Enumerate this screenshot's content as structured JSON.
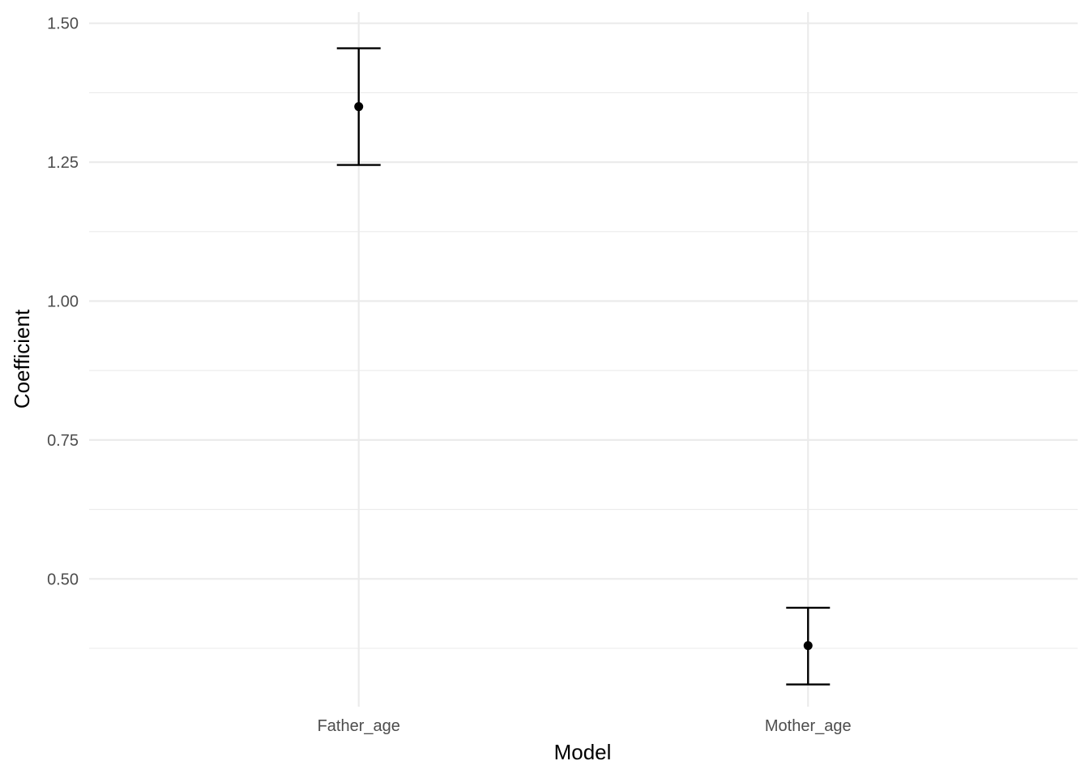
{
  "chart_data": {
    "type": "errorbar",
    "title": "",
    "xlabel": "Model",
    "ylabel": "Coefficient",
    "categories": [
      "Father_age",
      "Mother_age"
    ],
    "estimates": [
      1.35,
      0.38
    ],
    "lower": [
      1.245,
      0.31
    ],
    "upper": [
      1.455,
      0.448
    ],
    "ylim": [
      0.27,
      1.52
    ],
    "yticks": [
      0.5,
      0.75,
      1.0,
      1.25,
      1.5
    ],
    "ytick_labels": [
      "0.50",
      "0.75",
      "1.00",
      "1.25",
      "1.50"
    ],
    "minor_yticks": [
      0.375,
      0.625,
      0.875,
      1.125,
      1.375
    ],
    "grid": true,
    "legend": "none",
    "colors": {
      "mark": "#000000",
      "grid": "#ebebeb",
      "tick_text": "#4d4d4d"
    }
  }
}
